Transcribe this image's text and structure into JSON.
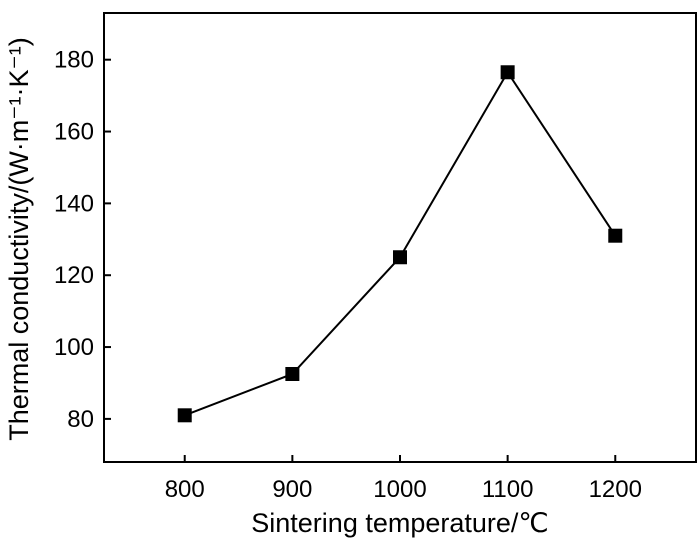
{
  "chart_data": {
    "type": "line",
    "title": "",
    "xlabel": "Sintering temperature/℃",
    "ylabel": "Thermal conductivity/(W·m⁻¹·K⁻¹)",
    "x": [
      800,
      900,
      1000,
      1100,
      1200
    ],
    "series": [
      {
        "values": [
          81,
          92.5,
          125,
          176.5,
          131
        ],
        "marker": "square",
        "color": "#000000"
      }
    ],
    "xlim": [
      725,
      1275
    ],
    "ylim": [
      68,
      193
    ],
    "xticks": [
      800,
      900,
      1000,
      1100,
      1200
    ],
    "yticks": [
      80,
      100,
      120,
      140,
      160,
      180
    ],
    "xtick_labels": [
      "800",
      "900",
      "1000",
      "1100",
      "1200"
    ],
    "ytick_labels": [
      "80",
      "100",
      "120",
      "140",
      "160",
      "180"
    ],
    "grid": false,
    "legend": "none"
  }
}
